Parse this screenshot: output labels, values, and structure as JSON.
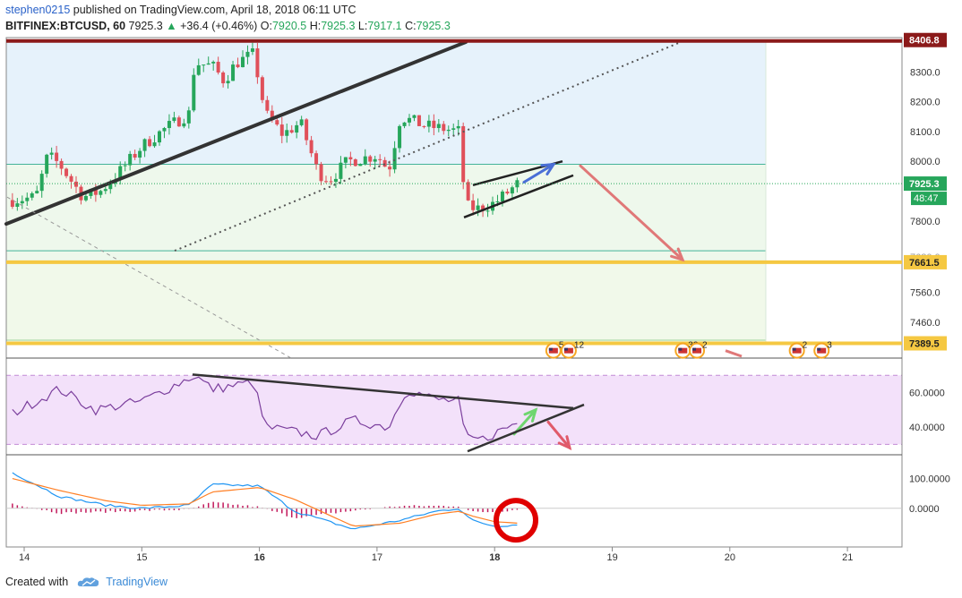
{
  "header": {
    "author": "stephen0215",
    "published_text": "published on TradingView.com, April 18, 2018 06:11 UTC",
    "symbol": "BITFINEX:BTCUSD, 60",
    "last": "7925.3",
    "change": "+36.4 (+0.46%)",
    "o_label": "O:",
    "o": "7920.5",
    "h_label": "H:",
    "h": "7925.3",
    "l_label": "L:",
    "l": "7917.1",
    "c_label": "C:",
    "c": "7925.3"
  },
  "footer": {
    "created_with": "Created with",
    "brand": "TradingView"
  },
  "colors": {
    "up": "#26a65b",
    "down": "#e0505a",
    "level": "#f5c842",
    "rsi_line": "#7b3f9d",
    "macd": "#2196f3",
    "signal": "#ff7f24",
    "hist": "#c2185b"
  },
  "chart_data": [
    {
      "type": "candlestick",
      "name": "BTCUSD price panel",
      "x_ticks": [
        "14",
        "15",
        "16",
        "17",
        "18",
        "19",
        "20",
        "21"
      ],
      "price_ticks": [
        "8300.0",
        "8200.0",
        "8100.0",
        "8000.0",
        "7800.0",
        "7560.0",
        "7460.0"
      ],
      "ylim": [
        7340,
        8415
      ],
      "levels": [
        "8406.8",
        "7661.5",
        "7389.5"
      ],
      "current_price": "7925.3",
      "countdown": "48:47",
      "hidden_axis_label": "7680.0",
      "events": [
        {
          "x": 18.5,
          "label": "5"
        },
        {
          "x": 18.63,
          "label": "12"
        },
        {
          "x": 19.6,
          "label": "33"
        },
        {
          "x": 19.72,
          "label": "2"
        },
        {
          "x": 20.57,
          "label": "2"
        },
        {
          "x": 20.78,
          "label": "3"
        }
      ]
    },
    {
      "type": "line",
      "name": "RSI",
      "ticks": [
        "60.0000",
        "40.0000"
      ],
      "ylim": [
        24,
        80
      ]
    },
    {
      "type": "line",
      "name": "MACD",
      "ticks": [
        "100.0000",
        "0.0000"
      ],
      "ylim": [
        -130,
        180
      ]
    }
  ]
}
